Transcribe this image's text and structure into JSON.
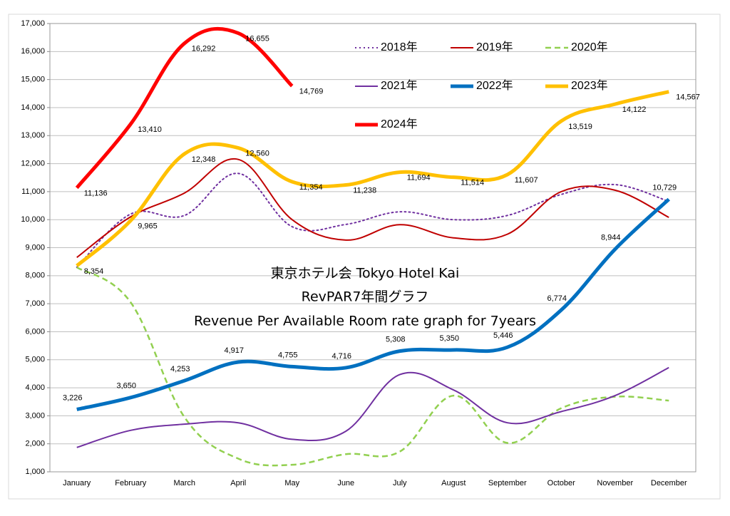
{
  "chart_data": {
    "type": "line",
    "title": [
      "東京ホテル会  Tokyo Hotel Kai",
      "RevPAR7年間グラフ",
      "Revenue Per Available Room rate graph for 7years"
    ],
    "categories": [
      "January",
      "February",
      "March",
      "April",
      "May",
      "June",
      "July",
      "August",
      "September",
      "October",
      "November",
      "December"
    ],
    "ylim": [
      1000,
      17000
    ],
    "yticks": [
      {
        "value": 1000,
        "label": "1,000"
      },
      {
        "value": 2000,
        "label": "2,000"
      },
      {
        "value": 3000,
        "label": "3,000"
      },
      {
        "value": 4000,
        "label": "4,000"
      },
      {
        "value": 5000,
        "label": "5,000"
      },
      {
        "value": 6000,
        "label": "6,000"
      },
      {
        "value": 7000,
        "label": "7,000"
      },
      {
        "value": 8000,
        "label": "8,000"
      },
      {
        "value": 9000,
        "label": "9,000"
      },
      {
        "value": 10000,
        "label": "10,000"
      },
      {
        "value": 11000,
        "label": "11,000"
      },
      {
        "value": 12000,
        "label": "12,000"
      },
      {
        "value": 13000,
        "label": "13,000"
      },
      {
        "value": 14000,
        "label": "14,000"
      },
      {
        "value": 15000,
        "label": "15,000"
      },
      {
        "value": 16000,
        "label": "16,000"
      },
      {
        "value": 17000,
        "label": "17,000"
      }
    ],
    "grid": true,
    "series": [
      {
        "name": "2018年",
        "color": "#7030a0",
        "line_style": "dotted",
        "line_width": 2,
        "values": [
          8300,
          10200,
          10150,
          11650,
          9750,
          9830,
          10280,
          10000,
          10150,
          10900,
          11250,
          10650
        ]
      },
      {
        "name": "2019年",
        "color": "#c00000",
        "line_style": "solid",
        "line_width": 2,
        "values": [
          8650,
          10100,
          10950,
          12150,
          10000,
          9270,
          9820,
          9350,
          9480,
          11000,
          11050,
          10080
        ]
      },
      {
        "name": "2020年",
        "color": "#92d050",
        "line_style": "dashed",
        "line_width": 2.5,
        "values": [
          8300,
          7050,
          2950,
          1470,
          1250,
          1630,
          1720,
          3720,
          2030,
          3270,
          3680,
          3540
        ]
      },
      {
        "name": "2021年",
        "color": "#7030a0",
        "line_style": "solid",
        "line_width": 2,
        "values": [
          1870,
          2480,
          2700,
          2750,
          2160,
          2450,
          4470,
          3920,
          2750,
          3150,
          3720,
          4720
        ]
      },
      {
        "name": "2022年",
        "color": "#0070c0",
        "line_style": "solid",
        "line_width": 5,
        "values": [
          3226,
          3650,
          4253,
          4917,
          4755,
          4716,
          5308,
          5350,
          5446,
          6774,
          8944,
          10729
        ],
        "value_labels": [
          "3,226",
          "3,650",
          "4,253",
          "4,917",
          "4,755",
          "4,716",
          "5,308",
          "5,350",
          "5,446",
          "6,774",
          "8,944",
          "10,729"
        ]
      },
      {
        "name": "2023年",
        "color": "#ffc000",
        "line_style": "solid",
        "line_width": 5,
        "values": [
          8354,
          9965,
          12348,
          12560,
          11354,
          11238,
          11694,
          11514,
          11607,
          13519,
          14122,
          14567
        ],
        "value_labels": [
          "8,354",
          "9,965",
          "12,348",
          "12,560",
          "11,354",
          "11,238",
          "11,694",
          "11,514",
          "11,607",
          "13,519",
          "14,122",
          "14,567"
        ]
      },
      {
        "name": "2024年",
        "color": "#ff0000",
        "line_style": "solid",
        "line_width": 5,
        "values": [
          11136,
          13410,
          16292,
          16655,
          14769,
          null,
          null,
          null,
          null,
          null,
          null,
          null
        ],
        "value_labels": [
          "11,136",
          "13,410",
          "16,292",
          "16,655",
          "14,769",
          null,
          null,
          null,
          null,
          null,
          null,
          null
        ]
      }
    ]
  }
}
